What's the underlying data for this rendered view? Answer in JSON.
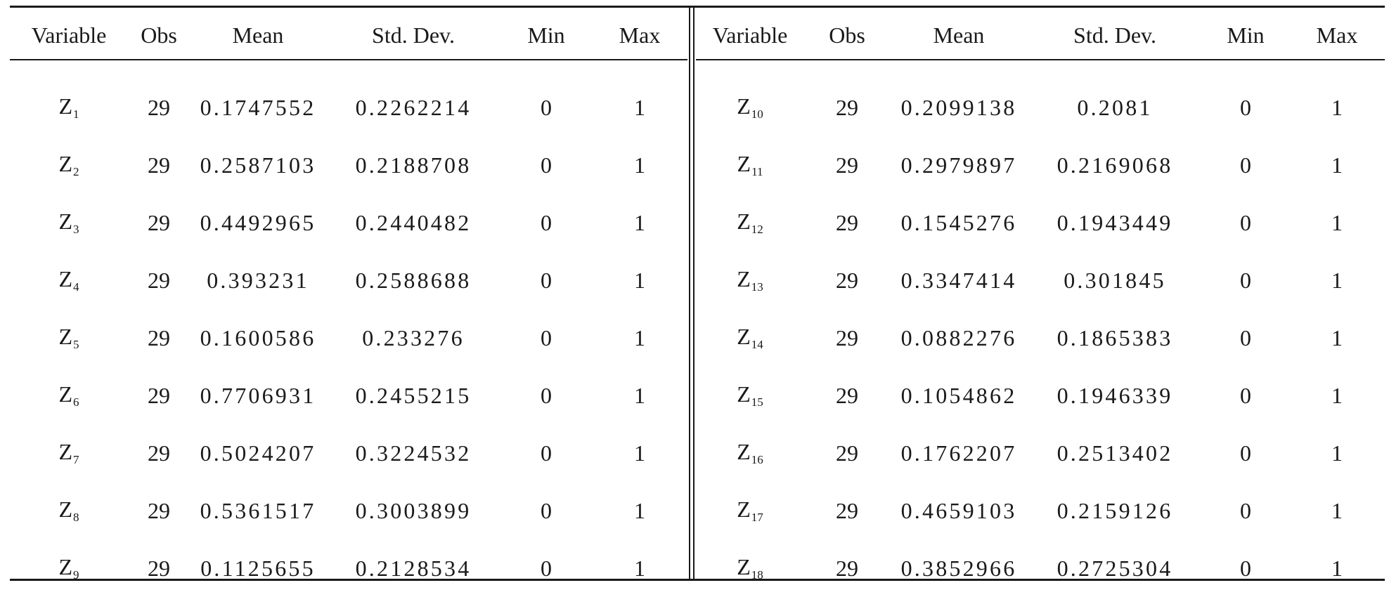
{
  "table": {
    "headers": [
      "Variable",
      "Obs",
      "Mean",
      "Std. Dev.",
      "Min",
      "Max"
    ],
    "left_rows": [
      {
        "var": "Z",
        "sub": "1",
        "obs": "29",
        "mean": "0.1747552",
        "sd": "0.2262214",
        "min": "0",
        "max": "1"
      },
      {
        "var": "Z",
        "sub": "2",
        "obs": "29",
        "mean": "0.2587103",
        "sd": "0.2188708",
        "min": "0",
        "max": "1"
      },
      {
        "var": "Z",
        "sub": "3",
        "obs": "29",
        "mean": "0.4492965",
        "sd": "0.2440482",
        "min": "0",
        "max": "1"
      },
      {
        "var": "Z",
        "sub": "4",
        "obs": "29",
        "mean": "0.393231",
        "sd": "0.2588688",
        "min": "0",
        "max": "1"
      },
      {
        "var": "Z",
        "sub": "5",
        "obs": "29",
        "mean": "0.1600586",
        "sd": "0.233276",
        "min": "0",
        "max": "1"
      },
      {
        "var": "Z",
        "sub": "6",
        "obs": "29",
        "mean": "0.7706931",
        "sd": "0.2455215",
        "min": "0",
        "max": "1"
      },
      {
        "var": "Z",
        "sub": "7",
        "obs": "29",
        "mean": "0.5024207",
        "sd": "0.3224532",
        "min": "0",
        "max": "1"
      },
      {
        "var": "Z",
        "sub": "8",
        "obs": "29",
        "mean": "0.5361517",
        "sd": "0.3003899",
        "min": "0",
        "max": "1"
      },
      {
        "var": "Z",
        "sub": "9",
        "obs": "29",
        "mean": "0.1125655",
        "sd": "0.2128534",
        "min": "0",
        "max": "1"
      }
    ],
    "right_rows": [
      {
        "var": "Z",
        "sub": "10",
        "obs": "29",
        "mean": "0.2099138",
        "sd": "0.2081",
        "min": "0",
        "max": "1"
      },
      {
        "var": "Z",
        "sub": "11",
        "obs": "29",
        "mean": "0.2979897",
        "sd": "0.2169068",
        "min": "0",
        "max": "1"
      },
      {
        "var": "Z",
        "sub": "12",
        "obs": "29",
        "mean": "0.1545276",
        "sd": "0.1943449",
        "min": "0",
        "max": "1"
      },
      {
        "var": "Z",
        "sub": "13",
        "obs": "29",
        "mean": "0.3347414",
        "sd": "0.301845",
        "min": "0",
        "max": "1"
      },
      {
        "var": "Z",
        "sub": "14",
        "obs": "29",
        "mean": "0.0882276",
        "sd": "0.1865383",
        "min": "0",
        "max": "1"
      },
      {
        "var": "Z",
        "sub": "15",
        "obs": "29",
        "mean": "0.1054862",
        "sd": "0.1946339",
        "min": "0",
        "max": "1"
      },
      {
        "var": "Z",
        "sub": "16",
        "obs": "29",
        "mean": "0.1762207",
        "sd": "0.2513402",
        "min": "0",
        "max": "1"
      },
      {
        "var": "Z",
        "sub": "17",
        "obs": "29",
        "mean": "0.4659103",
        "sd": "0.2159126",
        "min": "0",
        "max": "1"
      },
      {
        "var": "Z",
        "sub": "18",
        "obs": "29",
        "mean": "0.3852966",
        "sd": "0.2725304",
        "min": "0",
        "max": "1"
      }
    ]
  }
}
